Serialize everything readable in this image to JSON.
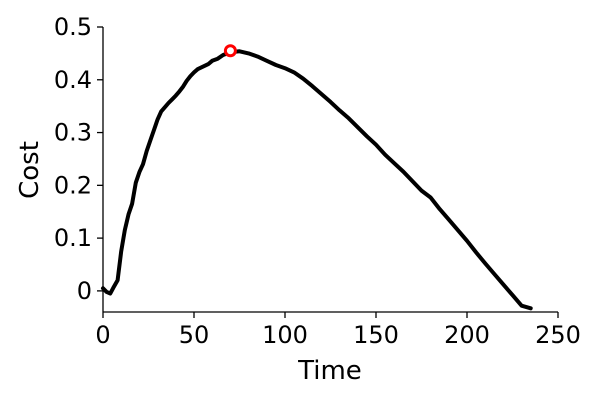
{
  "chart_data": {
    "type": "line",
    "xlabel": "Time",
    "ylabel": "Cost",
    "xlim": [
      0,
      250
    ],
    "ylim": [
      -0.04,
      0.5
    ],
    "xticks": [
      0,
      50,
      100,
      150,
      200,
      250
    ],
    "xtick_labels": [
      "0",
      "50",
      "100",
      "150",
      "200",
      "250"
    ],
    "yticks": [
      0,
      0.1,
      0.2,
      0.3,
      0.4,
      0.5
    ],
    "ytick_labels": [
      "0",
      "0.1",
      "0.2",
      "0.3",
      "0.4",
      "0.5"
    ],
    "grid": false,
    "series": [
      {
        "color": "#000000",
        "x": [
          0,
          2,
          4,
          6,
          8,
          10,
          12,
          14,
          16,
          18,
          20,
          22,
          24,
          26,
          28,
          30,
          32,
          34,
          36,
          38,
          40,
          42,
          44,
          46,
          48,
          50,
          52,
          55,
          58,
          60,
          63,
          66,
          70,
          75,
          80,
          85,
          90,
          95,
          100,
          105,
          110,
          115,
          120,
          125,
          130,
          135,
          140,
          145,
          150,
          155,
          160,
          165,
          170,
          175,
          180,
          185,
          190,
          195,
          200,
          205,
          210,
          215,
          220,
          225,
          230,
          235
        ],
        "y": [
          0.005,
          -0.002,
          -0.005,
          0.008,
          0.02,
          0.075,
          0.115,
          0.145,
          0.165,
          0.205,
          0.225,
          0.24,
          0.265,
          0.285,
          0.305,
          0.325,
          0.34,
          0.348,
          0.356,
          0.363,
          0.37,
          0.378,
          0.387,
          0.398,
          0.407,
          0.414,
          0.42,
          0.425,
          0.43,
          0.436,
          0.44,
          0.447,
          0.452,
          0.454,
          0.45,
          0.444,
          0.436,
          0.428,
          0.422,
          0.414,
          0.402,
          0.388,
          0.373,
          0.358,
          0.342,
          0.327,
          0.31,
          0.293,
          0.277,
          0.258,
          0.242,
          0.226,
          0.208,
          0.19,
          0.177,
          0.155,
          0.135,
          0.115,
          0.095,
          0.073,
          0.052,
          0.032,
          0.012,
          -0.008,
          -0.028,
          -0.033
        ]
      }
    ],
    "highlight_point": {
      "x": 70,
      "y": 0.455,
      "color": "#ff0000"
    }
  }
}
